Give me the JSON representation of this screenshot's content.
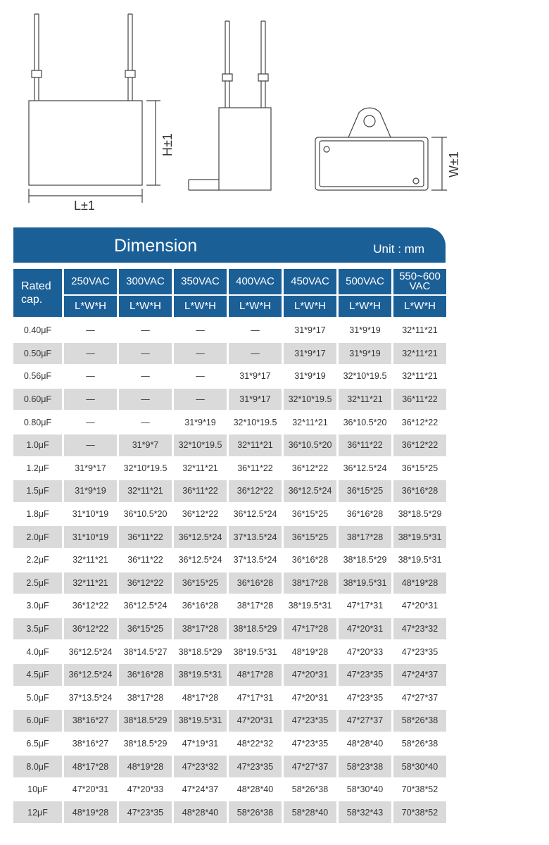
{
  "drawing": {
    "front_height_label": "H±1",
    "front_length_label": "L±1",
    "top_width_label": "W±1"
  },
  "table": {
    "title": "Dimension",
    "unit": "Unit : mm",
    "row_header": "Rated cap.",
    "voltages": [
      "250VAC",
      "300VAC",
      "350VAC",
      "400VAC",
      "450VAC",
      "500VAC",
      "550~600 VAC"
    ],
    "subheader": "L*W*H",
    "colors": {
      "header_bg": "#1b5f97",
      "shade_row": "#dadada"
    },
    "rows": [
      {
        "cap": "0.40μF",
        "values": [
          "—",
          "—",
          "—",
          "—",
          "31*9*17",
          "31*9*19",
          "32*11*21"
        ]
      },
      {
        "cap": "0.50μF",
        "values": [
          "—",
          "—",
          "—",
          "—",
          "31*9*17",
          "31*9*19",
          "32*11*21"
        ]
      },
      {
        "cap": "0.56μF",
        "values": [
          "—",
          "—",
          "—",
          "31*9*17",
          "31*9*19",
          "32*10*19.5",
          "32*11*21"
        ]
      },
      {
        "cap": "0.60μF",
        "values": [
          "—",
          "—",
          "—",
          "31*9*17",
          "32*10*19.5",
          "32*11*21",
          "36*11*22"
        ]
      },
      {
        "cap": "0.80μF",
        "values": [
          "—",
          "—",
          "31*9*19",
          "32*10*19.5",
          "32*11*21",
          "36*10.5*20",
          "36*12*22"
        ]
      },
      {
        "cap": "1.0μF",
        "values": [
          "—",
          "31*9*7",
          "32*10*19.5",
          "32*11*21",
          "36*10.5*20",
          "36*11*22",
          "36*12*22"
        ]
      },
      {
        "cap": "1.2μF",
        "values": [
          "31*9*17",
          "32*10*19.5",
          "32*11*21",
          "36*11*22",
          "36*12*22",
          "36*12.5*24",
          "36*15*25"
        ]
      },
      {
        "cap": "1.5μF",
        "values": [
          "31*9*19",
          "32*11*21",
          "36*11*22",
          "36*12*22",
          "36*12.5*24",
          "36*15*25",
          "36*16*28"
        ]
      },
      {
        "cap": "1.8μF",
        "values": [
          "31*10*19",
          "36*10.5*20",
          "36*12*22",
          "36*12.5*24",
          "36*15*25",
          "36*16*28",
          "38*18.5*29"
        ]
      },
      {
        "cap": "2.0μF",
        "values": [
          "31*10*19",
          "36*11*22",
          "36*12.5*24",
          "37*13.5*24",
          "36*15*25",
          "38*17*28",
          "38*19.5*31"
        ]
      },
      {
        "cap": "2.2μF",
        "values": [
          "32*11*21",
          "36*11*22",
          "36*12.5*24",
          "37*13.5*24",
          "36*16*28",
          "38*18.5*29",
          "38*19.5*31"
        ]
      },
      {
        "cap": "2.5μF",
        "values": [
          "32*11*21",
          "36*12*22",
          "36*15*25",
          "36*16*28",
          "38*17*28",
          "38*19.5*31",
          "48*19*28"
        ]
      },
      {
        "cap": "3.0μF",
        "values": [
          "36*12*22",
          "36*12.5*24",
          "36*16*28",
          "38*17*28",
          "38*19.5*31",
          "47*17*31",
          "47*20*31"
        ]
      },
      {
        "cap": "3.5μF",
        "values": [
          "36*12*22",
          "36*15*25",
          "38*17*28",
          "38*18.5*29",
          "47*17*28",
          "47*20*31",
          "47*23*32"
        ]
      },
      {
        "cap": "4.0μF",
        "values": [
          "36*12.5*24",
          "38*14.5*27",
          "38*18.5*29",
          "38*19.5*31",
          "48*19*28",
          "47*20*33",
          "47*23*35"
        ]
      },
      {
        "cap": "4.5μF",
        "values": [
          "36*12.5*24",
          "36*16*28",
          "38*19.5*31",
          "48*17*28",
          "47*20*31",
          "47*23*35",
          "47*24*37"
        ]
      },
      {
        "cap": "5.0μF",
        "values": [
          "37*13.5*24",
          "38*17*28",
          "48*17*28",
          "47*17*31",
          "47*20*31",
          "47*23*35",
          "47*27*37"
        ]
      },
      {
        "cap": "6.0μF",
        "values": [
          "38*16*27",
          "38*18.5*29",
          "38*19.5*31",
          "47*20*31",
          "47*23*35",
          "47*27*37",
          "58*26*38"
        ]
      },
      {
        "cap": "6.5μF",
        "values": [
          "38*16*27",
          "38*18.5*29",
          "47*19*31",
          "48*22*32",
          "47*23*35",
          "48*28*40",
          "58*26*38"
        ]
      },
      {
        "cap": "8.0μF",
        "values": [
          "48*17*28",
          "48*19*28",
          "47*23*32",
          "47*23*35",
          "47*27*37",
          "58*23*38",
          "58*30*40"
        ]
      },
      {
        "cap": "10μF",
        "values": [
          "47*20*31",
          "47*20*33",
          "47*24*37",
          "48*28*40",
          "58*26*38",
          "58*30*40",
          "70*38*52"
        ]
      },
      {
        "cap": "12μF",
        "values": [
          "48*19*28",
          "47*23*35",
          "48*28*40",
          "58*26*38",
          "58*28*40",
          "58*32*43",
          "70*38*52"
        ]
      }
    ]
  }
}
